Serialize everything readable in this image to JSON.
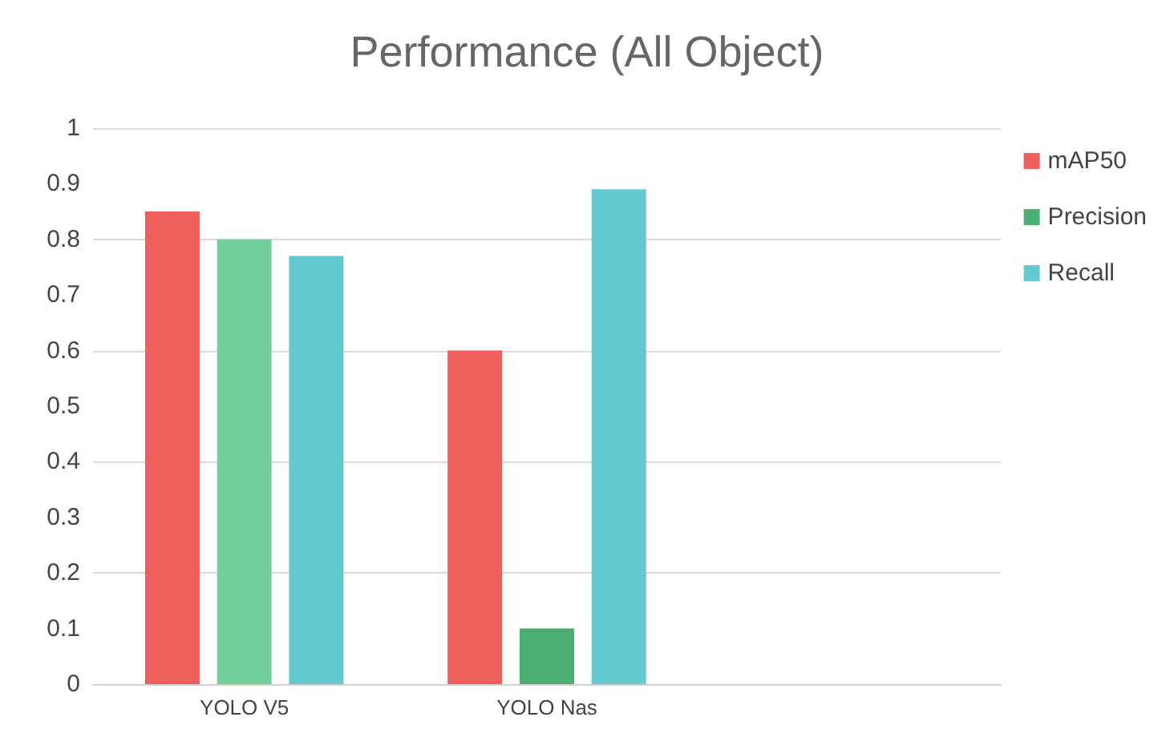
{
  "chart_data": {
    "type": "bar",
    "title": "Performance (All Object)",
    "categories": [
      "YOLO V5",
      "YOLO Nas",
      null
    ],
    "series": [
      {
        "name": "mAP50",
        "color": "#ee5f5b",
        "values": [
          0.85,
          0.6,
          null
        ]
      },
      {
        "name": "Precision",
        "color": "#4caf72",
        "colors": [
          "#72d19a",
          "#4caf72",
          null
        ],
        "values": [
          0.8,
          0.1,
          null
        ]
      },
      {
        "name": "Recall",
        "color": "#63c9d1",
        "values": [
          0.77,
          0.89,
          null
        ]
      }
    ],
    "ylim": [
      0,
      1
    ],
    "yticks": [
      0,
      0.1,
      0.2,
      0.3,
      0.4,
      0.5,
      0.6,
      0.7,
      0.8,
      0.9,
      1
    ],
    "grid": "y",
    "legend": "right"
  }
}
